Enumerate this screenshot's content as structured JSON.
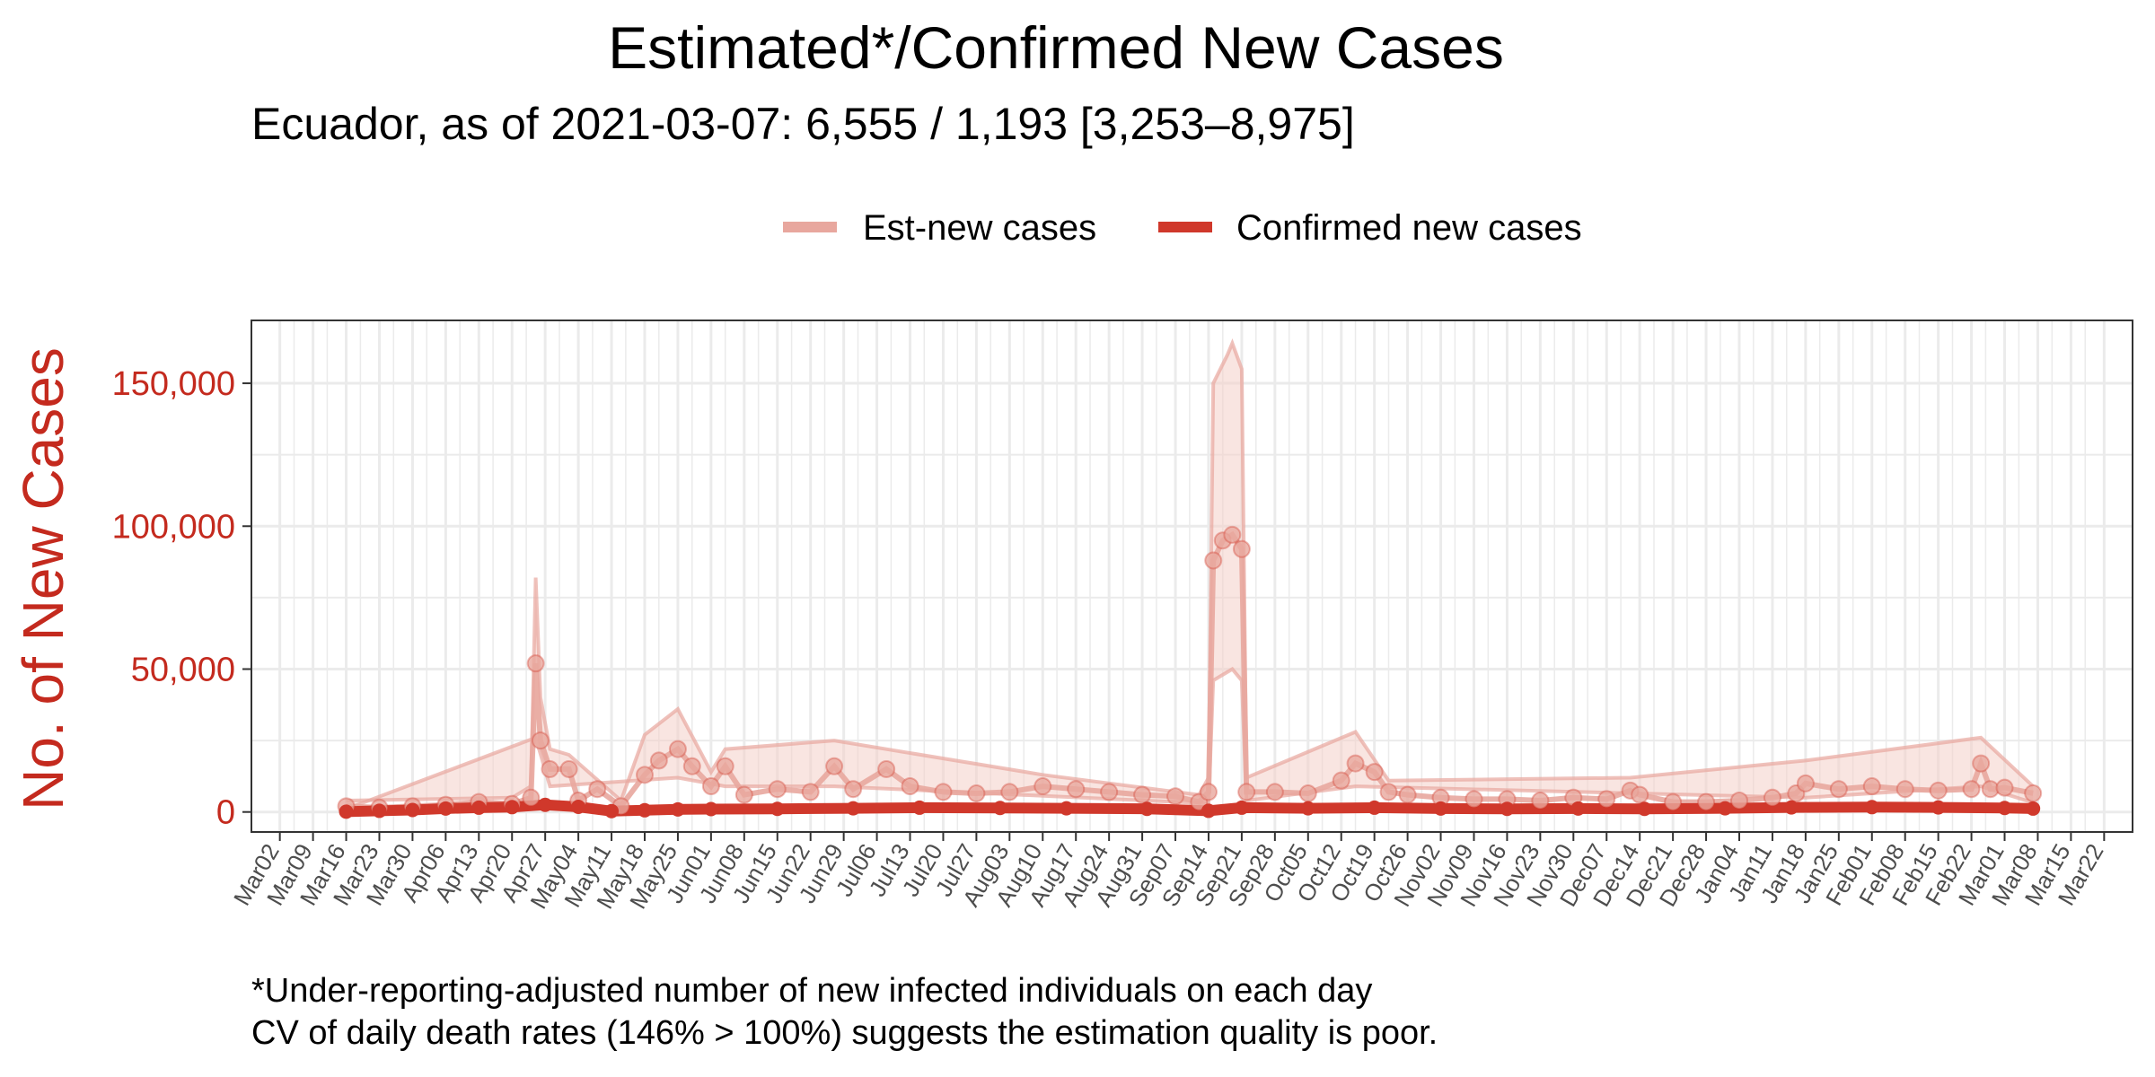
{
  "title": "Estimated*/Confirmed New Cases",
  "subtitle": "Ecuador, as of 2021-03-07: 6,555 / 1,193 [3,253–8,975]",
  "legend": {
    "est_label": "Est-new cases",
    "confirmed_label": "Confirmed new cases"
  },
  "ylabel": "No. of New Cases",
  "caption": {
    "line1": "*Under-reporting-adjusted number of new infected individuals on each day",
    "line2": "CV of daily death rates (146% > 100%) suggests the estimation quality is poor."
  },
  "colors": {
    "est": "#e8a79e",
    "est_band": "#f4cfc9",
    "confirmed": "#d0382b",
    "axis_text": "#c42a1e",
    "grid": "#ebebeb"
  },
  "chart_data": {
    "type": "line",
    "x_type": "date",
    "xlim": [
      "2020-02-25",
      "2021-03-28"
    ],
    "ylim": [
      -7000,
      172000
    ],
    "y_ticks": [
      0,
      50000,
      100000,
      150000
    ],
    "y_tick_labels": [
      "0",
      "50,000",
      "100,000",
      "150,000"
    ],
    "x_tick_labels": [
      "Mar02",
      "Mar09",
      "Mar16",
      "Mar23",
      "Mar30",
      "Apr06",
      "Apr13",
      "Apr20",
      "Apr27",
      "May04",
      "May11",
      "May18",
      "May25",
      "Jun01",
      "Jun08",
      "Jun15",
      "Jun22",
      "Jun29",
      "Jul06",
      "Jul13",
      "Jul20",
      "Jul27",
      "Aug03",
      "Aug10",
      "Aug17",
      "Aug24",
      "Aug31",
      "Sep07",
      "Sep14",
      "Sep21",
      "Sep28",
      "Oct05",
      "Oct12",
      "Oct19",
      "Oct26",
      "Nov02",
      "Nov09",
      "Nov16",
      "Nov23",
      "Nov30",
      "Dec07",
      "Dec14",
      "Dec21",
      "Dec28",
      "Jan04",
      "Jan11",
      "Jan18",
      "Jan25",
      "Feb01",
      "Feb08",
      "Feb15",
      "Feb22",
      "Mar01",
      "Mar08",
      "Mar15",
      "Mar22"
    ],
    "x_tick_start": "2020-03-02",
    "x_tick_step_days": 7,
    "grid": true,
    "legend_position": "top",
    "series": [
      {
        "name": "Est-new cases",
        "points": [
          [
            "2020-03-16",
            2000
          ],
          [
            "2020-03-23",
            1500
          ],
          [
            "2020-03-30",
            2000
          ],
          [
            "2020-04-06",
            2500
          ],
          [
            "2020-04-13",
            3500
          ],
          [
            "2020-04-20",
            2800
          ],
          [
            "2020-04-24",
            5000
          ],
          [
            "2020-04-25",
            52000
          ],
          [
            "2020-04-26",
            25000
          ],
          [
            "2020-04-28",
            15000
          ],
          [
            "2020-05-02",
            15000
          ],
          [
            "2020-05-04",
            4000
          ],
          [
            "2020-05-08",
            8000
          ],
          [
            "2020-05-13",
            2000
          ],
          [
            "2020-05-18",
            13000
          ],
          [
            "2020-05-21",
            18000
          ],
          [
            "2020-05-25",
            22000
          ],
          [
            "2020-05-28",
            16000
          ],
          [
            "2020-06-01",
            9000
          ],
          [
            "2020-06-04",
            16000
          ],
          [
            "2020-06-08",
            6000
          ],
          [
            "2020-06-15",
            8000
          ],
          [
            "2020-06-22",
            7000
          ],
          [
            "2020-06-27",
            16000
          ],
          [
            "2020-07-01",
            8000
          ],
          [
            "2020-07-08",
            15000
          ],
          [
            "2020-07-13",
            9000
          ],
          [
            "2020-07-20",
            7000
          ],
          [
            "2020-07-27",
            6500
          ],
          [
            "2020-08-03",
            7000
          ],
          [
            "2020-08-10",
            9000
          ],
          [
            "2020-08-17",
            8000
          ],
          [
            "2020-08-24",
            7000
          ],
          [
            "2020-08-31",
            6000
          ],
          [
            "2020-09-07",
            5500
          ],
          [
            "2020-09-12",
            3500
          ],
          [
            "2020-09-14",
            7000
          ],
          [
            "2020-09-15",
            88000
          ],
          [
            "2020-09-17",
            95000
          ],
          [
            "2020-09-19",
            97000
          ],
          [
            "2020-09-21",
            92000
          ],
          [
            "2020-09-22",
            7000
          ],
          [
            "2020-09-28",
            7000
          ],
          [
            "2020-10-05",
            6500
          ],
          [
            "2020-10-12",
            11000
          ],
          [
            "2020-10-15",
            17000
          ],
          [
            "2020-10-19",
            14000
          ],
          [
            "2020-10-22",
            7000
          ],
          [
            "2020-10-26",
            6000
          ],
          [
            "2020-11-02",
            5000
          ],
          [
            "2020-11-09",
            4500
          ],
          [
            "2020-11-16",
            4500
          ],
          [
            "2020-11-23",
            4000
          ],
          [
            "2020-11-30",
            5000
          ],
          [
            "2020-12-07",
            4500
          ],
          [
            "2020-12-12",
            7500
          ],
          [
            "2020-12-14",
            6000
          ],
          [
            "2020-12-21",
            3500
          ],
          [
            "2020-12-28",
            3500
          ],
          [
            "2021-01-04",
            4000
          ],
          [
            "2021-01-11",
            5000
          ],
          [
            "2021-01-16",
            6500
          ],
          [
            "2021-01-18",
            10000
          ],
          [
            "2021-01-25",
            8000
          ],
          [
            "2021-02-01",
            9000
          ],
          [
            "2021-02-08",
            8000
          ],
          [
            "2021-02-15",
            7500
          ],
          [
            "2021-02-22",
            8000
          ],
          [
            "2021-02-24",
            17000
          ],
          [
            "2021-02-26",
            8000
          ],
          [
            "2021-03-01",
            8500
          ],
          [
            "2021-03-07",
            6555
          ]
        ],
        "upper": [
          [
            "2020-03-16",
            4000
          ],
          [
            "2020-04-20",
            5000
          ],
          [
            "2020-04-24",
            9000
          ],
          [
            "2020-04-25",
            82000
          ],
          [
            "2020-04-26",
            40000
          ],
          [
            "2020-04-28",
            22000
          ],
          [
            "2020-05-02",
            20000
          ],
          [
            "2020-05-13",
            4000
          ],
          [
            "2020-05-18",
            27000
          ],
          [
            "2020-05-25",
            36000
          ],
          [
            "2020-06-01",
            14000
          ],
          [
            "2020-06-04",
            22000
          ],
          [
            "2020-06-27",
            25000
          ],
          [
            "2020-07-08",
            22000
          ],
          [
            "2020-08-10",
            13000
          ],
          [
            "2020-09-12",
            6000
          ],
          [
            "2020-09-14",
            12000
          ],
          [
            "2020-09-15",
            150000
          ],
          [
            "2020-09-18",
            160000
          ],
          [
            "2020-09-19",
            164000
          ],
          [
            "2020-09-21",
            155000
          ],
          [
            "2020-09-22",
            12000
          ],
          [
            "2020-10-15",
            28000
          ],
          [
            "2020-10-22",
            11000
          ],
          [
            "2020-12-12",
            12000
          ],
          [
            "2021-01-18",
            18000
          ],
          [
            "2021-02-24",
            26000
          ],
          [
            "2021-03-07",
            8975
          ]
        ],
        "lower": [
          [
            "2020-03-16",
            1000
          ],
          [
            "2020-04-25",
            26000
          ],
          [
            "2020-04-28",
            9000
          ],
          [
            "2020-05-25",
            12000
          ],
          [
            "2020-06-04",
            9000
          ],
          [
            "2020-06-27",
            9000
          ],
          [
            "2020-09-14",
            3000
          ],
          [
            "2020-09-15",
            46000
          ],
          [
            "2020-09-19",
            50000
          ],
          [
            "2020-09-21",
            46000
          ],
          [
            "2020-09-22",
            4000
          ],
          [
            "2020-10-15",
            9000
          ],
          [
            "2021-01-18",
            5000
          ],
          [
            "2021-02-24",
            9000
          ],
          [
            "2021-03-07",
            3253
          ]
        ]
      },
      {
        "name": "Confirmed new cases",
        "points": [
          [
            "2020-03-16",
            100
          ],
          [
            "2020-03-23",
            400
          ],
          [
            "2020-03-30",
            700
          ],
          [
            "2020-04-06",
            1200
          ],
          [
            "2020-04-13",
            1500
          ],
          [
            "2020-04-20",
            1700
          ],
          [
            "2020-04-27",
            2500
          ],
          [
            "2020-05-04",
            1800
          ],
          [
            "2020-05-11",
            300
          ],
          [
            "2020-05-18",
            600
          ],
          [
            "2020-05-25",
            900
          ],
          [
            "2020-06-01",
            1000
          ],
          [
            "2020-06-15",
            1100
          ],
          [
            "2020-07-01",
            1300
          ],
          [
            "2020-07-15",
            1500
          ],
          [
            "2020-08-01",
            1400
          ],
          [
            "2020-08-15",
            1300
          ],
          [
            "2020-09-01",
            1100
          ],
          [
            "2020-09-14",
            400
          ],
          [
            "2020-09-21",
            1500
          ],
          [
            "2020-10-05",
            1300
          ],
          [
            "2020-10-19",
            1500
          ],
          [
            "2020-11-02",
            1200
          ],
          [
            "2020-11-16",
            1100
          ],
          [
            "2020-12-01",
            1200
          ],
          [
            "2020-12-15",
            1100
          ],
          [
            "2021-01-01",
            1300
          ],
          [
            "2021-01-15",
            1600
          ],
          [
            "2021-02-01",
            1700
          ],
          [
            "2021-02-15",
            1600
          ],
          [
            "2021-03-01",
            1400
          ],
          [
            "2021-03-07",
            1193
          ]
        ]
      }
    ]
  }
}
